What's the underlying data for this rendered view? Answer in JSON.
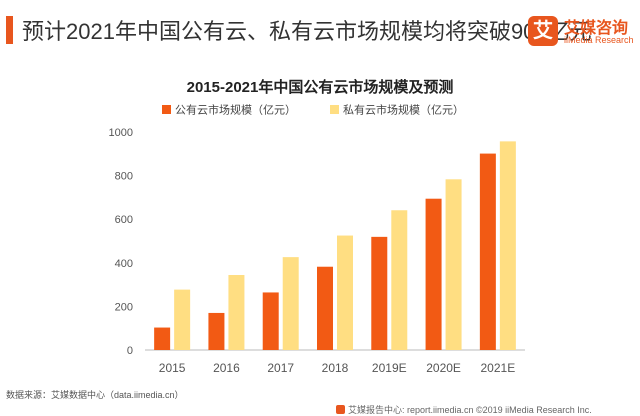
{
  "header": {
    "headline": "预计2021年中国公有云、私有云市场规模均将突破900亿元"
  },
  "brand": {
    "badge": "艾",
    "name_cn": "艾媒咨询",
    "name_en": "iiMedia Research"
  },
  "colors": {
    "accent": "#E8561E",
    "series1": "#F25A14",
    "series2": "#FFDE82",
    "axis_text": "#555555",
    "grid": "#DDDDDD"
  },
  "chart_data": {
    "type": "bar",
    "title": "2015-2021年中国公有云市场规模及预测",
    "categories": [
      "2015",
      "2016",
      "2017",
      "2018",
      "2019E",
      "2020E",
      "2021E"
    ],
    "series": [
      {
        "name": "公有云市场规模（亿元）",
        "values": [
          103,
          170,
          264,
          382,
          519,
          694,
          901
        ]
      },
      {
        "name": "私有云市场规模（亿元）",
        "values": [
          277,
          344,
          426,
          525,
          641,
          783,
          957
        ]
      }
    ],
    "ylim": [
      0,
      1000
    ],
    "yticks": [
      0,
      200,
      400,
      600,
      800,
      1000
    ],
    "grid": false,
    "legend": "top"
  },
  "footer": {
    "source": "数据来源：艾媒数据中心（data.iimedia.cn）",
    "credit": "艾媒报告中心: report.iimedia.cn ©2019  iiMedia Research  Inc."
  }
}
